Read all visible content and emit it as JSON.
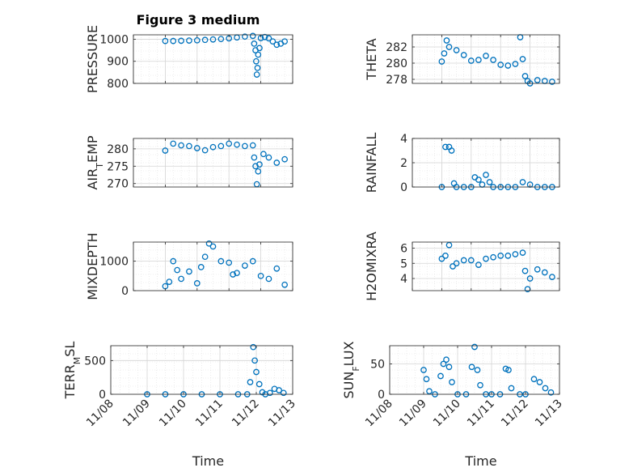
{
  "figure": {
    "title": "Figure 3 medium"
  },
  "chart_data": [
    {
      "type": "scatter",
      "ylabel": "PRESSURE",
      "xlabel": "",
      "ylim": [
        800,
        1020
      ],
      "yticks": [
        800,
        900,
        1000
      ],
      "xlim": [
        "2024-11-08",
        "2024-11-13"
      ],
      "xticks": [
        "11/08",
        "11/09",
        "11/10",
        "11/11",
        "11/12",
        "11/13"
      ],
      "grid": true,
      "series": [
        {
          "color": "#0072BD",
          "x": [
            "11/09 00:00",
            "11/09 06:00",
            "11/09 12:00",
            "11/09 18:00",
            "11/10 00:00",
            "11/10 06:00",
            "11/10 12:00",
            "11/10 18:00",
            "11/11 00:00",
            "11/11 06:00",
            "11/11 12:00",
            "11/11 18:00",
            "11/11 19:00",
            "11/11 20:00",
            "11/11 20:30",
            "11/11 21:00",
            "11/11 21:30",
            "11/11 22:00",
            "11/11 23:00",
            "11/12 00:00",
            "11/12 03:00",
            "11/12 06:00",
            "11/12 09:00",
            "11/12 12:00",
            "11/12 15:00",
            "11/12 18:00"
          ],
          "y": [
            992,
            992,
            993,
            994,
            995,
            997,
            999,
            1001,
            1004,
            1008,
            1012,
            1015,
            980,
            950,
            900,
            840,
            870,
            930,
            960,
            1005,
            1010,
            1004,
            990,
            975,
            980,
            990
          ]
        }
      ]
    },
    {
      "type": "scatter",
      "ylabel": "THETA",
      "xlabel": "",
      "ylim": [
        277.5,
        283.5
      ],
      "yticks": [
        278,
        280,
        282
      ],
      "xlim": [
        "2024-11-08",
        "2024-11-13"
      ],
      "xticks": [
        "11/08",
        "11/09",
        "11/10",
        "11/11",
        "11/12",
        "11/13"
      ],
      "grid": true,
      "series": [
        {
          "color": "#0072BD",
          "x": [
            "11/09 00:00",
            "11/09 02:00",
            "11/09 04:00",
            "11/09 06:00",
            "11/09 12:00",
            "11/09 18:00",
            "11/10 00:00",
            "11/10 06:00",
            "11/10 12:00",
            "11/10 18:00",
            "11/11 00:00",
            "11/11 06:00",
            "11/11 12:00",
            "11/11 16:00",
            "11/11 18:00",
            "11/11 20:00",
            "11/11 22:00",
            "11/12 00:00",
            "11/12 06:00",
            "11/12 12:00",
            "11/12 18:00"
          ],
          "y": [
            280.2,
            281.2,
            282.8,
            282.0,
            281.6,
            281.0,
            280.3,
            280.4,
            280.9,
            280.4,
            279.8,
            279.7,
            279.9,
            283.2,
            280.5,
            278.4,
            277.8,
            277.5,
            277.9,
            277.8,
            277.7
          ]
        }
      ]
    },
    {
      "type": "scatter",
      "ylabel": "AIR_TEMP",
      "xlabel": "",
      "ylim": [
        269,
        283
      ],
      "yticks": [
        270,
        275,
        280
      ],
      "xlim": [
        "2024-11-08",
        "2024-11-13"
      ],
      "xticks": [
        "11/08",
        "11/09",
        "11/10",
        "11/11",
        "11/12",
        "11/13"
      ],
      "grid": true,
      "series": [
        {
          "color": "#0072BD",
          "x": [
            "11/09 00:00",
            "11/09 06:00",
            "11/09 12:00",
            "11/09 18:00",
            "11/10 00:00",
            "11/10 06:00",
            "11/10 12:00",
            "11/10 18:00",
            "11/11 00:00",
            "11/11 06:00",
            "11/11 12:00",
            "11/11 18:00",
            "11/11 19:00",
            "11/11 20:00",
            "11/11 21:00",
            "11/11 22:00",
            "11/11 23:00",
            "11/12 02:00",
            "11/12 06:00",
            "11/12 12:00",
            "11/12 18:00"
          ],
          "y": [
            279.5,
            281.5,
            281.0,
            280.8,
            280.2,
            279.6,
            280.5,
            280.8,
            281.5,
            281.2,
            280.8,
            281.0,
            277.5,
            275.0,
            269.8,
            273.5,
            275.5,
            278.5,
            277.5,
            276.0,
            277.0
          ]
        }
      ]
    },
    {
      "type": "scatter",
      "ylabel": "RAINFALL",
      "xlabel": "",
      "ylim": [
        0,
        4
      ],
      "yticks": [
        0,
        2,
        4
      ],
      "xlim": [
        "2024-11-08",
        "2024-11-13"
      ],
      "xticks": [
        "11/08",
        "11/09",
        "11/10",
        "11/11",
        "11/12",
        "11/13"
      ],
      "grid": true,
      "series": [
        {
          "color": "#0072BD",
          "x": [
            "11/09 00:00",
            "11/09 03:00",
            "11/09 06:00",
            "11/09 08:00",
            "11/09 10:00",
            "11/09 12:00",
            "11/09 18:00",
            "11/10 00:00",
            "11/10 03:00",
            "11/10 06:00",
            "11/10 09:00",
            "11/10 12:00",
            "11/10 15:00",
            "11/10 18:00",
            "11/11 00:00",
            "11/11 06:00",
            "11/11 12:00",
            "11/11 18:00",
            "11/12 00:00",
            "11/12 06:00",
            "11/12 12:00",
            "11/12 18:00"
          ],
          "y": [
            0,
            3.3,
            3.3,
            3.0,
            0.3,
            0,
            0,
            0,
            0.8,
            0.6,
            0.2,
            1.0,
            0.4,
            0,
            0,
            0,
            0,
            0.4,
            0.2,
            0,
            0,
            0
          ]
        }
      ]
    },
    {
      "type": "scatter",
      "ylabel": "MIXDEPTH",
      "xlabel": "",
      "ylim": [
        0,
        1650
      ],
      "yticks": [
        0,
        1000
      ],
      "xlim": [
        "2024-11-08",
        "2024-11-13"
      ],
      "xticks": [
        "11/08",
        "11/09",
        "11/10",
        "11/11",
        "11/12",
        "11/13"
      ],
      "grid": true,
      "series": [
        {
          "color": "#0072BD",
          "x": [
            "11/09 00:00",
            "11/09 03:00",
            "11/09 06:00",
            "11/09 09:00",
            "11/09 12:00",
            "11/09 18:00",
            "11/10 00:00",
            "11/10 03:00",
            "11/10 06:00",
            "11/10 09:00",
            "11/10 12:00",
            "11/10 18:00",
            "11/11 00:00",
            "11/11 03:00",
            "11/11 06:00",
            "11/11 12:00",
            "11/11 18:00",
            "11/12 00:00",
            "11/12 06:00",
            "11/12 12:00",
            "11/12 18:00"
          ],
          "y": [
            150,
            300,
            1000,
            700,
            400,
            650,
            250,
            800,
            1150,
            1600,
            1500,
            1000,
            950,
            550,
            600,
            850,
            1000,
            500,
            400,
            750,
            200
          ]
        }
      ]
    },
    {
      "type": "scatter",
      "ylabel": "H2OMIXRA",
      "xlabel": "",
      "ylim": [
        3.2,
        6.4
      ],
      "yticks": [
        4,
        5,
        6
      ],
      "xlim": [
        "2024-11-08",
        "2024-11-13"
      ],
      "xticks": [
        "11/08",
        "11/09",
        "11/10",
        "11/11",
        "11/12",
        "11/13"
      ],
      "grid": true,
      "series": [
        {
          "color": "#0072BD",
          "x": [
            "11/09 00:00",
            "11/09 03:00",
            "11/09 06:00",
            "11/09 09:00",
            "11/09 12:00",
            "11/09 18:00",
            "11/10 00:00",
            "11/10 06:00",
            "11/10 12:00",
            "11/10 18:00",
            "11/11 00:00",
            "11/11 06:00",
            "11/11 12:00",
            "11/11 18:00",
            "11/11 20:00",
            "11/11 22:00",
            "11/12 00:00",
            "11/12 06:00",
            "11/12 12:00",
            "11/12 18:00"
          ],
          "y": [
            5.3,
            5.5,
            6.2,
            4.8,
            5.0,
            5.2,
            5.2,
            4.9,
            5.3,
            5.4,
            5.5,
            5.5,
            5.6,
            5.7,
            4.5,
            3.3,
            4.0,
            4.6,
            4.4,
            4.1
          ]
        }
      ]
    },
    {
      "type": "scatter",
      "ylabel": "TERR_MSL",
      "xlabel": "Time",
      "ylim": [
        0,
        720
      ],
      "yticks": [
        0,
        500
      ],
      "xlim": [
        "2024-11-08",
        "2024-11-13"
      ],
      "xticks": [
        "11/08",
        "11/09",
        "11/10",
        "11/11",
        "11/12",
        "11/13"
      ],
      "grid": true,
      "series": [
        {
          "color": "#0072BD",
          "x": [
            "11/09 00:00",
            "11/09 12:00",
            "11/10 00:00",
            "11/10 12:00",
            "11/11 00:00",
            "11/11 12:00",
            "11/11 18:00",
            "11/11 20:00",
            "11/11 22:00",
            "11/11 23:00",
            "11/12 00:00",
            "11/12 02:00",
            "11/12 04:00",
            "11/12 06:00",
            "11/12 09:00",
            "11/12 12:00",
            "11/12 15:00",
            "11/12 18:00"
          ],
          "y": [
            0,
            0,
            0,
            0,
            0,
            0,
            0,
            180,
            700,
            500,
            330,
            150,
            30,
            0,
            20,
            80,
            60,
            20
          ]
        }
      ]
    },
    {
      "type": "scatter",
      "ylabel": "SUN_FLUX",
      "xlabel": "Time",
      "ylim": [
        0,
        80
      ],
      "yticks": [
        0,
        50
      ],
      "xlim": [
        "2024-11-08",
        "2024-11-13"
      ],
      "xticks": [
        "11/08",
        "11/09",
        "11/10",
        "11/11",
        "11/12",
        "11/13"
      ],
      "grid": true,
      "series": [
        {
          "color": "#0072BD",
          "x": [
            "11/09 00:00",
            "11/09 02:00",
            "11/09 04:00",
            "11/09 08:00",
            "11/09 12:00",
            "11/09 14:00",
            "11/09 16:00",
            "11/09 18:00",
            "11/09 20:00",
            "11/10 00:00",
            "11/10 06:00",
            "11/10 10:00",
            "11/10 12:00",
            "11/10 14:00",
            "11/10 16:00",
            "11/10 20:00",
            "11/11 00:00",
            "11/11 06:00",
            "11/11 10:00",
            "11/11 12:00",
            "11/11 14:00",
            "11/11 20:00",
            "11/12 00:00",
            "11/12 06:00",
            "11/12 10:00",
            "11/12 14:00",
            "11/12 18:00"
          ],
          "y": [
            40,
            25,
            5,
            0,
            30,
            50,
            57,
            45,
            20,
            0,
            0,
            45,
            78,
            40,
            15,
            0,
            0,
            0,
            42,
            40,
            10,
            0,
            0,
            25,
            20,
            10,
            3
          ]
        }
      ]
    }
  ]
}
